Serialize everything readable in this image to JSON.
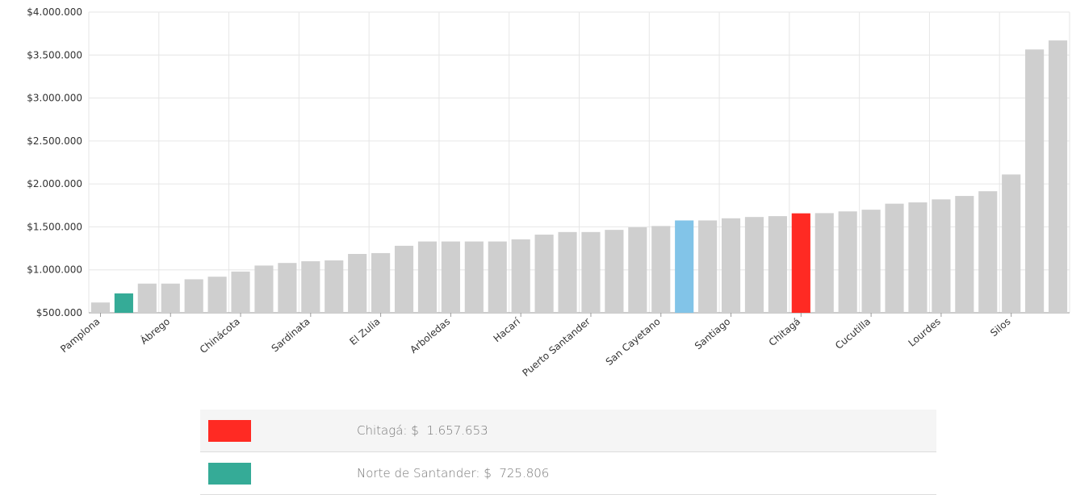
{
  "chart_data": {
    "type": "bar",
    "categories": [
      "Pamplona",
      null,
      null,
      "Ábrego",
      null,
      null,
      "Chinácota",
      null,
      null,
      "Sardinata",
      null,
      null,
      "El Zulia",
      null,
      null,
      "Arboledas",
      null,
      null,
      "Hacarí",
      null,
      null,
      "Puerto Santander",
      null,
      null,
      "San Cayetano",
      null,
      null,
      "Santiago",
      null,
      null,
      "Chitagá",
      null,
      null,
      "Cucutilla",
      null,
      null,
      "Lourdes",
      null,
      null,
      "Silos",
      null,
      null
    ],
    "values": [
      620000,
      725806,
      840000,
      840000,
      890000,
      920000,
      980000,
      1050000,
      1080000,
      1100000,
      1110000,
      1185000,
      1195000,
      1280000,
      1330000,
      1330000,
      1330000,
      1330000,
      1355000,
      1410000,
      1440000,
      1440000,
      1465000,
      1495000,
      1510000,
      1575000,
      1575000,
      1600000,
      1615000,
      1625000,
      1657653,
      1660000,
      1680000,
      1700000,
      1770000,
      1785000,
      1820000,
      1860000,
      1915000,
      2110000,
      3565000,
      3670000
    ],
    "colors": [
      "#cfcfcf",
      "#35ab97",
      "#cfcfcf",
      "#cfcfcf",
      "#cfcfcf",
      "#cfcfcf",
      "#cfcfcf",
      "#cfcfcf",
      "#cfcfcf",
      "#cfcfcf",
      "#cfcfcf",
      "#cfcfcf",
      "#cfcfcf",
      "#cfcfcf",
      "#cfcfcf",
      "#cfcfcf",
      "#cfcfcf",
      "#cfcfcf",
      "#cfcfcf",
      "#cfcfcf",
      "#cfcfcf",
      "#cfcfcf",
      "#cfcfcf",
      "#cfcfcf",
      "#cfcfcf",
      "#82c4e8",
      "#cfcfcf",
      "#cfcfcf",
      "#cfcfcf",
      "#cfcfcf",
      "#ff2a23",
      "#cfcfcf",
      "#cfcfcf",
      "#cfcfcf",
      "#cfcfcf",
      "#cfcfcf",
      "#cfcfcf",
      "#cfcfcf",
      "#cfcfcf",
      "#cfcfcf",
      "#cfcfcf",
      "#cfcfcf"
    ],
    "ylim": [
      500000,
      4000000
    ],
    "yticks": [
      {
        "value": 500000,
        "label": "$500.000"
      },
      {
        "value": 1000000,
        "label": "$1.000.000"
      },
      {
        "value": 1500000,
        "label": "$1.500.000"
      },
      {
        "value": 2000000,
        "label": "$2.000.000"
      },
      {
        "value": 2500000,
        "label": "$2.500.000"
      },
      {
        "value": 3000000,
        "label": "$3.000.000"
      },
      {
        "value": 3500000,
        "label": "$3.500.000"
      },
      {
        "value": 4000000,
        "label": "$4.000.000"
      }
    ],
    "grid": true,
    "legend": [
      {
        "label": "Chitagá: $  1.657.653",
        "color": "#ff2a23"
      },
      {
        "label": "Norte de Santander: $  725.806",
        "color": "#35ab97"
      }
    ]
  }
}
